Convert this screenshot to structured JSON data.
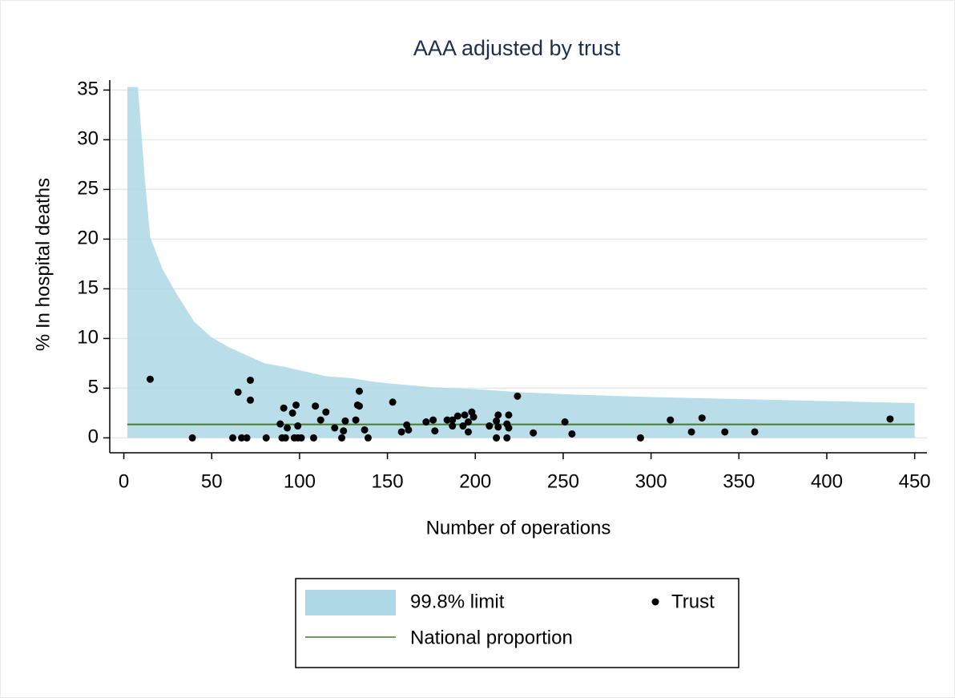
{
  "chart_data": {
    "type": "scatter",
    "title": "AAA adjusted by trust",
    "x_label": "Number of operations",
    "y_label": "% In hospital deaths",
    "xlim": [
      -8,
      457
    ],
    "ylim": [
      -1.5,
      36
    ],
    "xticks": [
      0,
      50,
      100,
      150,
      200,
      250,
      300,
      350,
      400,
      450
    ],
    "yticks": [
      0,
      5,
      10,
      15,
      20,
      25,
      30,
      35
    ],
    "grid": true,
    "legend": "bottom",
    "series": [
      {
        "name": "99.8% limit",
        "type": "area",
        "color": "#add8e6",
        "x": [
          2,
          8,
          12,
          15,
          22,
          30,
          40,
          50,
          60,
          70,
          80,
          90,
          100,
          115,
          130,
          140,
          150,
          175,
          200,
          225,
          250,
          300,
          350,
          400,
          450
        ],
        "values": [
          35.3,
          35.3,
          26,
          20.2,
          17,
          14.5,
          11.7,
          10.1,
          9.1,
          8.3,
          7.5,
          7.2,
          6.8,
          6.2,
          6,
          5.7,
          5.5,
          5.1,
          4.9,
          4.6,
          4.4,
          4.1,
          3.9,
          3.7,
          3.5
        ]
      },
      {
        "name": "National proportion",
        "type": "line",
        "color": "#4a7a2c",
        "x": [
          2,
          450
        ],
        "values": [
          1.35,
          1.35
        ]
      },
      {
        "name": "Trust",
        "type": "scatter",
        "color": "#000000",
        "x": [
          15,
          39,
          62,
          65,
          67,
          70,
          72,
          72,
          81,
          89,
          91,
          90,
          92,
          93,
          96,
          98,
          97,
          99,
          101,
          99,
          108,
          109,
          112,
          115,
          120,
          124,
          125,
          126,
          132,
          133,
          134,
          134,
          137,
          139,
          153,
          158,
          161,
          162,
          172,
          176,
          177,
          184,
          187,
          187,
          190,
          193,
          194,
          196,
          196,
          198,
          199,
          208,
          212,
          212,
          213,
          213,
          218,
          218,
          219,
          219,
          224,
          233,
          251,
          255,
          294,
          311,
          323,
          329,
          342,
          359,
          436
        ],
        "values": [
          5.9,
          0,
          0,
          4.6,
          0,
          0,
          5.8,
          3.8,
          0,
          1.4,
          3.0,
          0,
          0,
          1.0,
          2.5,
          3.3,
          0,
          1.2,
          0,
          0,
          0,
          3.2,
          1.8,
          2.6,
          1.0,
          0,
          0.7,
          1.7,
          1.8,
          3.3,
          3.2,
          4.7,
          0.8,
          0,
          3.6,
          0.6,
          1.3,
          0.8,
          1.6,
          1.8,
          0.7,
          1.8,
          1.2,
          1.8,
          2.2,
          1.2,
          2.3,
          1.6,
          0.6,
          2.6,
          2.1,
          1.2,
          1.7,
          0,
          2.3,
          1.1,
          1.4,
          0,
          2.3,
          1.0,
          4.2,
          0.5,
          1.6,
          0.4,
          0,
          1.8,
          0.6,
          2.0,
          0.6,
          0.6,
          1.9
        ]
      }
    ]
  }
}
